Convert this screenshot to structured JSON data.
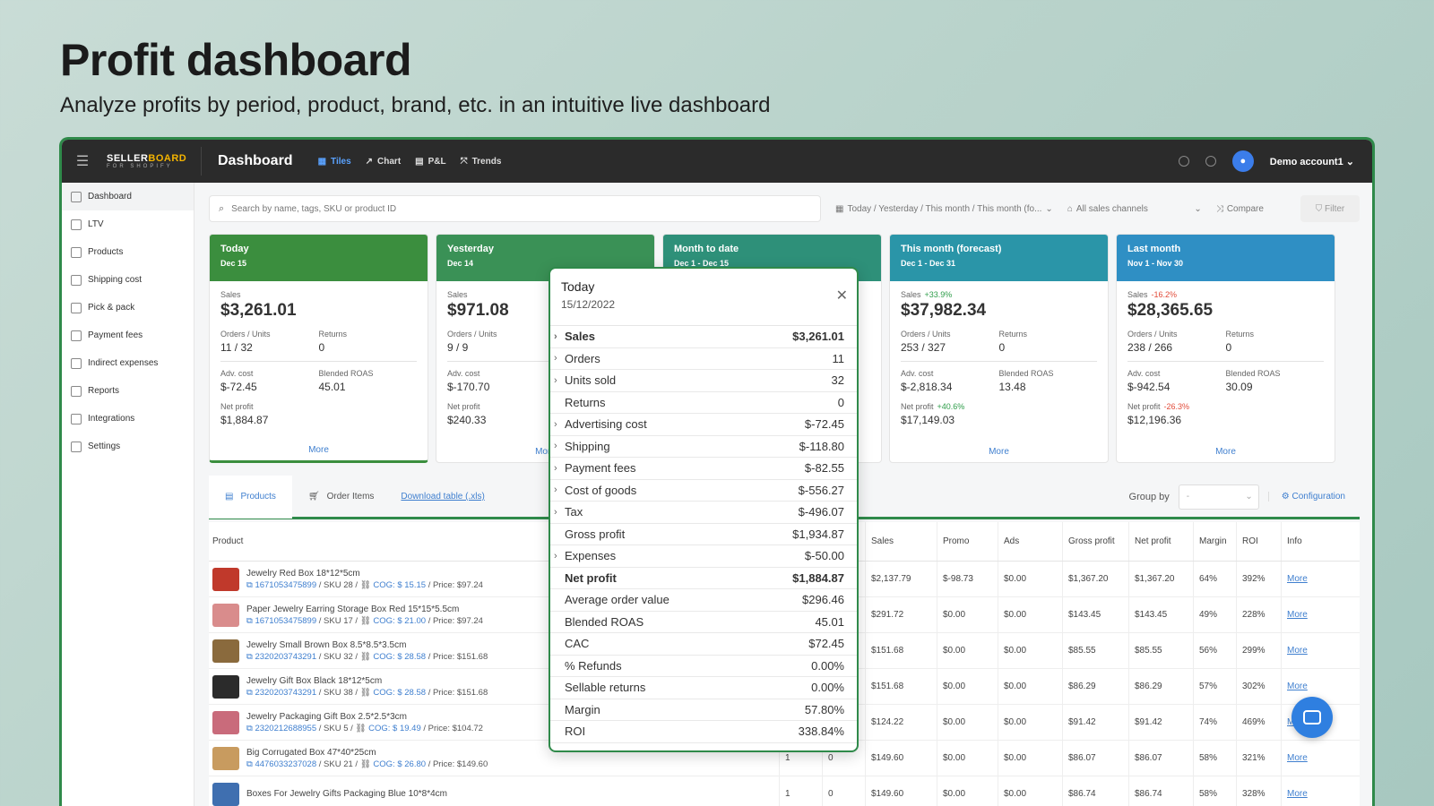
{
  "hero": {
    "title": "Profit dashboard",
    "subtitle": "Analyze profits by period, product, brand, etc. in an intuitive live dashboard"
  },
  "topbar": {
    "logo_main_a": "SELLER",
    "logo_main_b": "BOARD",
    "logo_sub": "FOR SHOPIFY",
    "title": "Dashboard",
    "tabs": [
      {
        "label": "Tiles",
        "icon": "grid-icon",
        "active": true
      },
      {
        "label": "Chart",
        "icon": "chart-line-icon"
      },
      {
        "label": "P&L",
        "icon": "table-icon"
      },
      {
        "label": "Trends",
        "icon": "trends-icon"
      }
    ],
    "account": "Demo account1"
  },
  "sidebar": {
    "items": [
      {
        "label": "Dashboard",
        "icon": "dashboard-icon"
      },
      {
        "label": "LTV",
        "icon": "clock-icon"
      },
      {
        "label": "Products",
        "icon": "box-icon"
      },
      {
        "label": "Shipping cost",
        "icon": "truck-icon"
      },
      {
        "label": "Pick & pack",
        "icon": "package-icon"
      },
      {
        "label": "Payment fees",
        "icon": "percent-icon"
      },
      {
        "label": "Indirect expenses",
        "icon": "wallet-icon"
      },
      {
        "label": "Reports",
        "icon": "report-icon"
      },
      {
        "label": "Integrations",
        "icon": "puzzle-icon"
      },
      {
        "label": "Settings",
        "icon": "gear-icon"
      }
    ]
  },
  "filters": {
    "search_placeholder": "Search by name, tags, SKU or product ID",
    "period": "Today / Yesterday / This month / This month (fo...",
    "channels": "All sales channels",
    "compare": "Compare",
    "filter": "Filter"
  },
  "tiles": [
    {
      "title": "Today",
      "date": "Dec 15",
      "sales": "$3,261.01",
      "sales_delta": "",
      "orders_units": "11 / 32",
      "returns": "0",
      "adv_cost": "$-72.45",
      "roas": "45.01",
      "net_profit": "$1,884.87",
      "np_delta": "",
      "more": "More"
    },
    {
      "title": "Yesterday",
      "date": "Dec 14",
      "sales": "$971.08",
      "sales_delta": "",
      "orders_units": "9 / 9",
      "returns": "",
      "adv_cost": "$-170.70",
      "roas": "",
      "net_profit": "$240.33",
      "np_delta": "",
      "more": "More"
    },
    {
      "title": "Month to date",
      "date": "Dec 1 - Dec 15"
    },
    {
      "title": "This month (forecast)",
      "date": "Dec 1 - Dec 31",
      "sales": "$37,982.34",
      "sales_delta": "+33.9%",
      "orders_units": "253 / 327",
      "returns": "0",
      "adv_cost": "$-2,818.34",
      "roas": "13.48",
      "net_profit": "$17,149.03",
      "np_delta": "+40.6%",
      "more": "More"
    },
    {
      "title": "Last month",
      "date": "Nov 1 - Nov 30",
      "sales": "$28,365.65",
      "sales_delta": "-16.2%",
      "orders_units": "238 / 266",
      "returns": "0",
      "adv_cost": "$-942.54",
      "roas": "30.09",
      "net_profit": "$12,196.36",
      "np_delta": "-26.3%",
      "more": "More"
    }
  ],
  "tile_labels": {
    "sales": "Sales",
    "orders_units": "Orders / Units",
    "returns": "Returns",
    "adv_cost": "Adv. cost",
    "roas": "Blended ROAS",
    "net_profit": "Net profit"
  },
  "table_tabs": {
    "products": "Products",
    "order_items": "Order Items",
    "download": "Download table (.xls)",
    "group_by": "Group by",
    "group_value": "-",
    "configuration": "Configuration"
  },
  "table": {
    "headers": [
      "Product",
      "Sales",
      "Promo",
      "Ads",
      "Gross profit",
      "Net profit",
      "Margin",
      "ROI",
      "Info"
    ],
    "rows": [
      {
        "name": "Jewelry Red Box 18*12*5cm",
        "id": "1671053475899",
        "sku": "/ SKU 28 /",
        "cog": "COG: $ 15.15",
        "price": "/ Price: $97.24",
        "a": "",
        "b": "",
        "sales": "$2,137.79",
        "promo": "$-98.73",
        "ads": "$0.00",
        "gp": "$1,367.20",
        "np": "$1,367.20",
        "margin": "64%",
        "roi": "392%",
        "info": "More",
        "thumb": "#c0392b"
      },
      {
        "name": "Paper Jewelry Earring Storage Box Red 15*15*5.5cm",
        "id": "1671053475899",
        "sku": "/ SKU 17 /",
        "cog": "COG: $ 21.00",
        "price": "/ Price: $97.24",
        "a": "",
        "b": "",
        "sales": "$291.72",
        "promo": "$0.00",
        "ads": "$0.00",
        "gp": "$143.45",
        "np": "$143.45",
        "margin": "49%",
        "roi": "228%",
        "info": "More",
        "thumb": "#d98c8c"
      },
      {
        "name": "Jewelry Small Brown Box 8.5*8.5*3.5cm",
        "id": "2320203743291",
        "sku": "/ SKU 32 /",
        "cog": "COG: $ 28.58",
        "price": "/ Price: $151.68",
        "a": "",
        "b": "",
        "sales": "$151.68",
        "promo": "$0.00",
        "ads": "$0.00",
        "gp": "$85.55",
        "np": "$85.55",
        "margin": "56%",
        "roi": "299%",
        "info": "More",
        "thumb": "#8a6a3d"
      },
      {
        "name": "Jewelry Gift Box Black 18*12*5cm",
        "id": "2320203743291",
        "sku": "/ SKU 38 /",
        "cog": "COG: $ 28.58",
        "price": "/ Price: $151.68",
        "a": "",
        "b": "",
        "sales": "$151.68",
        "promo": "$0.00",
        "ads": "$0.00",
        "gp": "$86.29",
        "np": "$86.29",
        "margin": "57%",
        "roi": "302%",
        "info": "More",
        "thumb": "#2b2b2b"
      },
      {
        "name": "Jewelry Packaging Gift Box 2.5*2.5*3cm",
        "id": "2320212688955",
        "sku": "/ SKU 5 /",
        "cog": "COG: $ 19.49",
        "price": "/ Price: $104.72",
        "a": "",
        "b": "",
        "sales": "$124.22",
        "promo": "$0.00",
        "ads": "$0.00",
        "gp": "$91.42",
        "np": "$91.42",
        "margin": "74%",
        "roi": "469%",
        "info": "More",
        "thumb": "#c96b7b"
      },
      {
        "name": "Big Corrugated Box 47*40*25cm",
        "id": "4476033237028",
        "sku": "/ SKU 21 /",
        "cog": "COG: $ 26.80",
        "price": "/ Price: $149.60",
        "a": "1",
        "b": "0",
        "sales": "$149.60",
        "promo": "$0.00",
        "ads": "$0.00",
        "gp": "$86.07",
        "np": "$86.07",
        "margin": "58%",
        "roi": "321%",
        "info": "More",
        "thumb": "#c89b5f"
      },
      {
        "name": "Boxes For Jewelry Gifts Packaging Blue 10*8*4cm",
        "id": "",
        "sku": "",
        "cog": "",
        "price": "",
        "a": "1",
        "b": "0",
        "sales": "$149.60",
        "promo": "$0.00",
        "ads": "$0.00",
        "gp": "$86.74",
        "np": "$86.74",
        "margin": "58%",
        "roi": "328%",
        "info": "More",
        "thumb": "#3f6fb0"
      }
    ]
  },
  "popup": {
    "title": "Today",
    "date": "15/12/2022",
    "rows": [
      {
        "label": "Sales",
        "value": "$3,261.01",
        "expand": true,
        "bold": true
      },
      {
        "label": "Orders",
        "value": "11",
        "expand": true
      },
      {
        "label": "Units sold",
        "value": "32",
        "expand": true
      },
      {
        "label": "Returns",
        "value": "0",
        "expand": false
      },
      {
        "label": "Advertising cost",
        "value": "$-72.45",
        "expand": true
      },
      {
        "label": "Shipping",
        "value": "$-118.80",
        "expand": true
      },
      {
        "label": "Payment fees",
        "value": "$-82.55",
        "expand": true
      },
      {
        "label": "Cost of goods",
        "value": "$-556.27",
        "expand": true
      },
      {
        "label": "Tax",
        "value": "$-496.07",
        "expand": true
      },
      {
        "label": "Gross profit",
        "value": "$1,934.87",
        "expand": false
      },
      {
        "label": "Expenses",
        "value": "$-50.00",
        "expand": true
      },
      {
        "label": "Net profit",
        "value": "$1,884.87",
        "expand": false,
        "bold": true
      },
      {
        "label": "Average order value",
        "value": "$296.46",
        "expand": false
      },
      {
        "label": "Blended ROAS",
        "value": "45.01",
        "expand": false
      },
      {
        "label": "CAC",
        "value": "$72.45",
        "expand": false
      },
      {
        "label": "% Refunds",
        "value": "0.00%",
        "expand": false
      },
      {
        "label": "Sellable returns",
        "value": "0.00%",
        "expand": false
      },
      {
        "label": "Margin",
        "value": "57.80%",
        "expand": false
      },
      {
        "label": "ROI",
        "value": "338.84%",
        "expand": false
      }
    ]
  }
}
